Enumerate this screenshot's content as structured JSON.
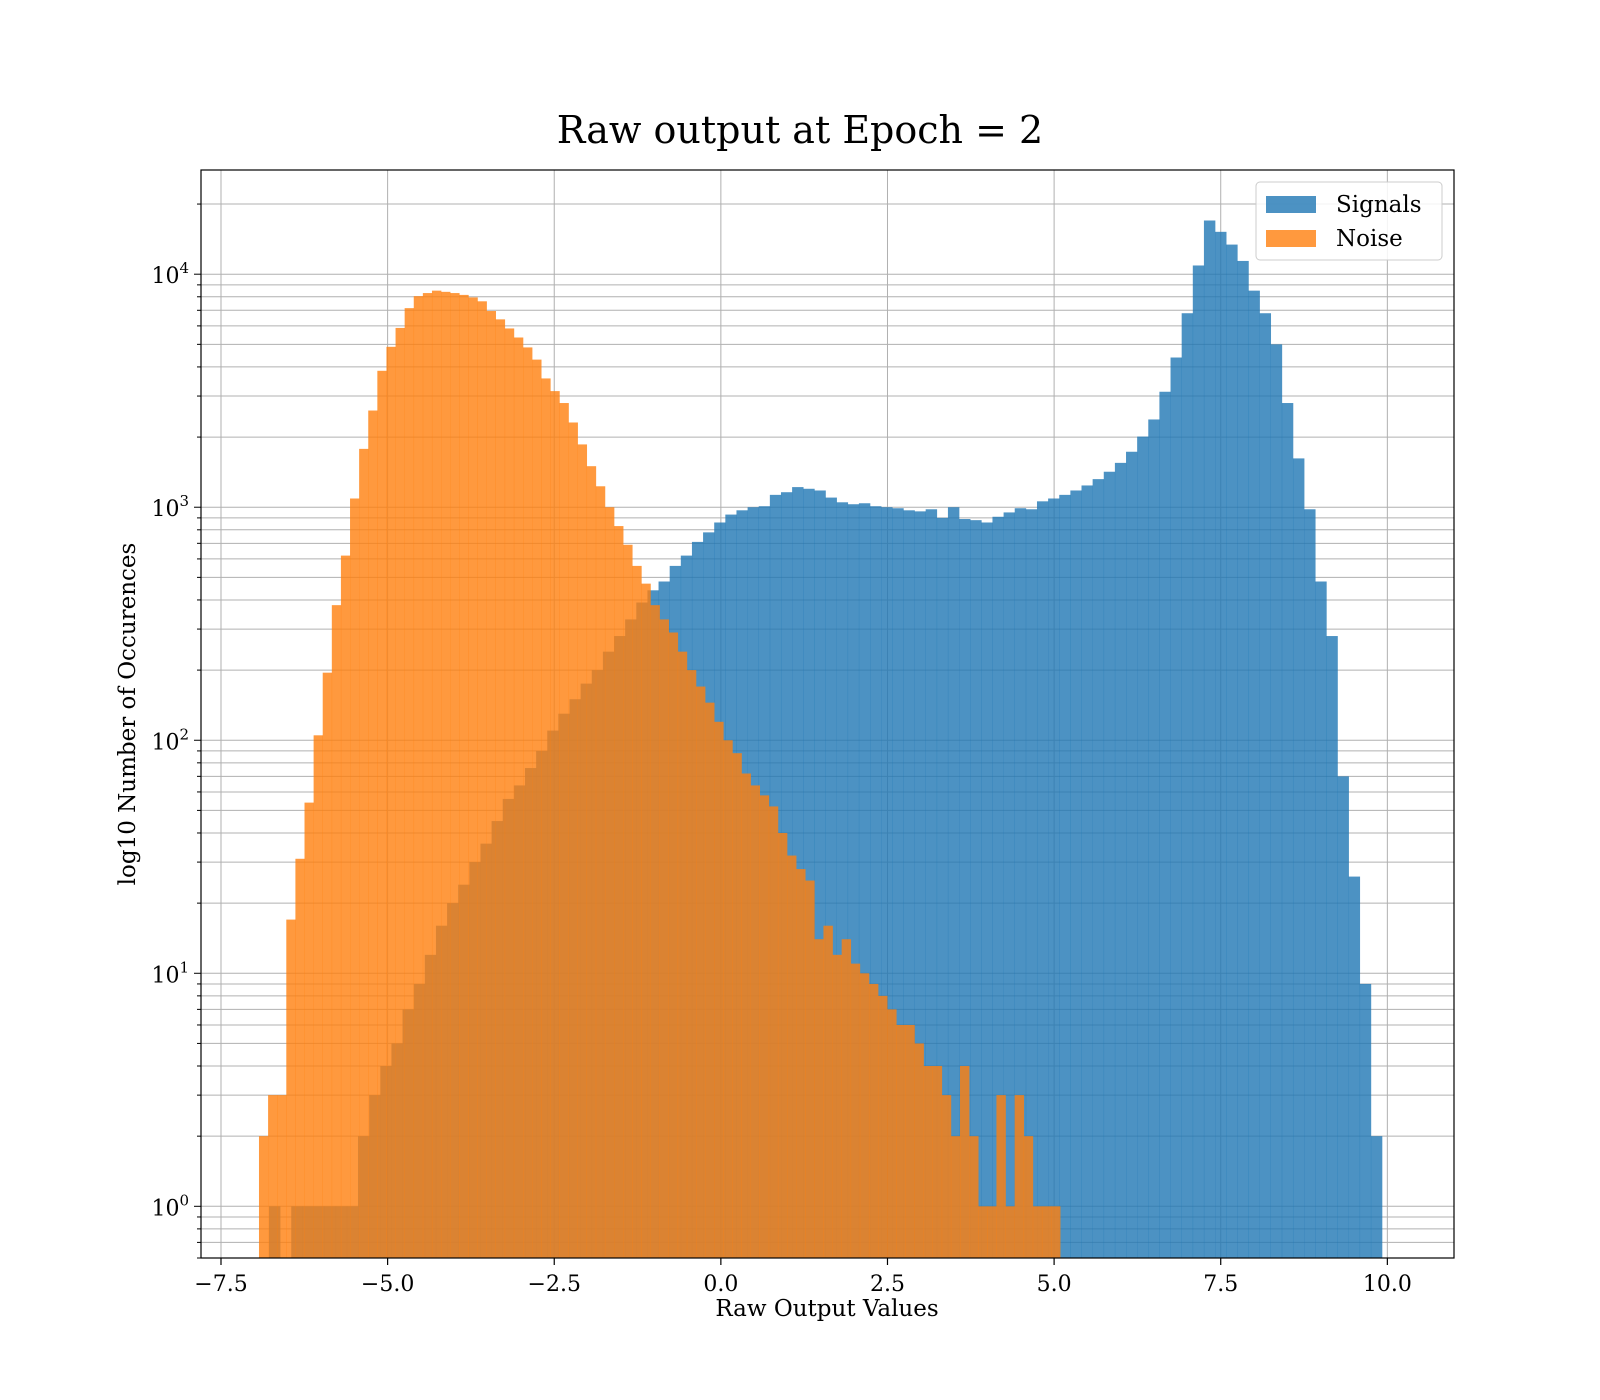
{
  "chart_data": {
    "type": "histogram",
    "title": "Raw output at Epoch = 2",
    "xlabel": "Raw Output Values",
    "ylabel": "log10 Number of Occurences",
    "xlim": [
      -7.8,
      11.0
    ],
    "ylim": [
      0.6,
      28000
    ],
    "yscale": "log",
    "grid": true,
    "legend_position": "top-right",
    "x_ticks": [
      -7.5,
      -5.0,
      -2.5,
      0.0,
      2.5,
      5.0,
      7.5,
      10.0
    ],
    "x_tick_labels": [
      "−7.5",
      "−5.0",
      "−2.5",
      "0.0",
      "2.5",
      "5.0",
      "7.5",
      "10.0"
    ],
    "y_ticks": [
      1,
      10,
      100,
      1000,
      10000
    ],
    "y_tick_bases": [
      "10",
      "10",
      "10",
      "10",
      "10"
    ],
    "y_tick_exponents": [
      "0",
      "1",
      "2",
      "3",
      "4"
    ],
    "series": [
      {
        "name": "Signals",
        "color": "#1f77b4",
        "opacity": 0.8,
        "bin_start": -6.78,
        "bin_width": 0.167,
        "counts": [
          1,
          0,
          1,
          1,
          1,
          1,
          1,
          1,
          2,
          3,
          4,
          5,
          7,
          9,
          12,
          16,
          20,
          24,
          30,
          36,
          45,
          56,
          64,
          76,
          90,
          110,
          130,
          150,
          175,
          200,
          240,
          280,
          330,
          390,
          440,
          480,
          560,
          620,
          710,
          780,
          860,
          930,
          970,
          1000,
          1010,
          1130,
          1160,
          1220,
          1200,
          1180,
          1100,
          1050,
          1030,
          1040,
          1010,
          1000,
          990,
          970,
          960,
          980,
          900,
          1000,
          890,
          880,
          860,
          910,
          950,
          990,
          980,
          1060,
          1090,
          1130,
          1180,
          1240,
          1320,
          1420,
          1550,
          1730,
          2010,
          2380,
          3130,
          4390,
          6800,
          10900,
          17000,
          15200,
          13400,
          11400,
          8500,
          6800,
          5000,
          2800,
          1620,
          980,
          480,
          280,
          70,
          26,
          9,
          2
        ]
      },
      {
        "name": "Noise",
        "color": "#ff7f0e",
        "opacity": 0.8,
        "bin_start": -6.93,
        "bin_width": 0.1366,
        "counts": [
          2,
          3,
          3,
          17,
          31,
          54,
          105,
          195,
          380,
          620,
          1090,
          1780,
          2600,
          3850,
          4880,
          5880,
          7150,
          8050,
          8300,
          8500,
          8400,
          8300,
          8150,
          7950,
          7650,
          6950,
          6400,
          5850,
          5350,
          4850,
          4300,
          3570,
          3150,
          2800,
          2310,
          1860,
          1500,
          1230,
          1000,
          830,
          690,
          560,
          470,
          380,
          330,
          290,
          240,
          200,
          170,
          145,
          120,
          100,
          88,
          72,
          64,
          58,
          52,
          40,
          32,
          28,
          25,
          14,
          16,
          12,
          14,
          11,
          10,
          9,
          8,
          7,
          6,
          6,
          5,
          4,
          4,
          3,
          2,
          4,
          2,
          1,
          1,
          3,
          1,
          3,
          2,
          1,
          1,
          1
        ]
      }
    ]
  }
}
